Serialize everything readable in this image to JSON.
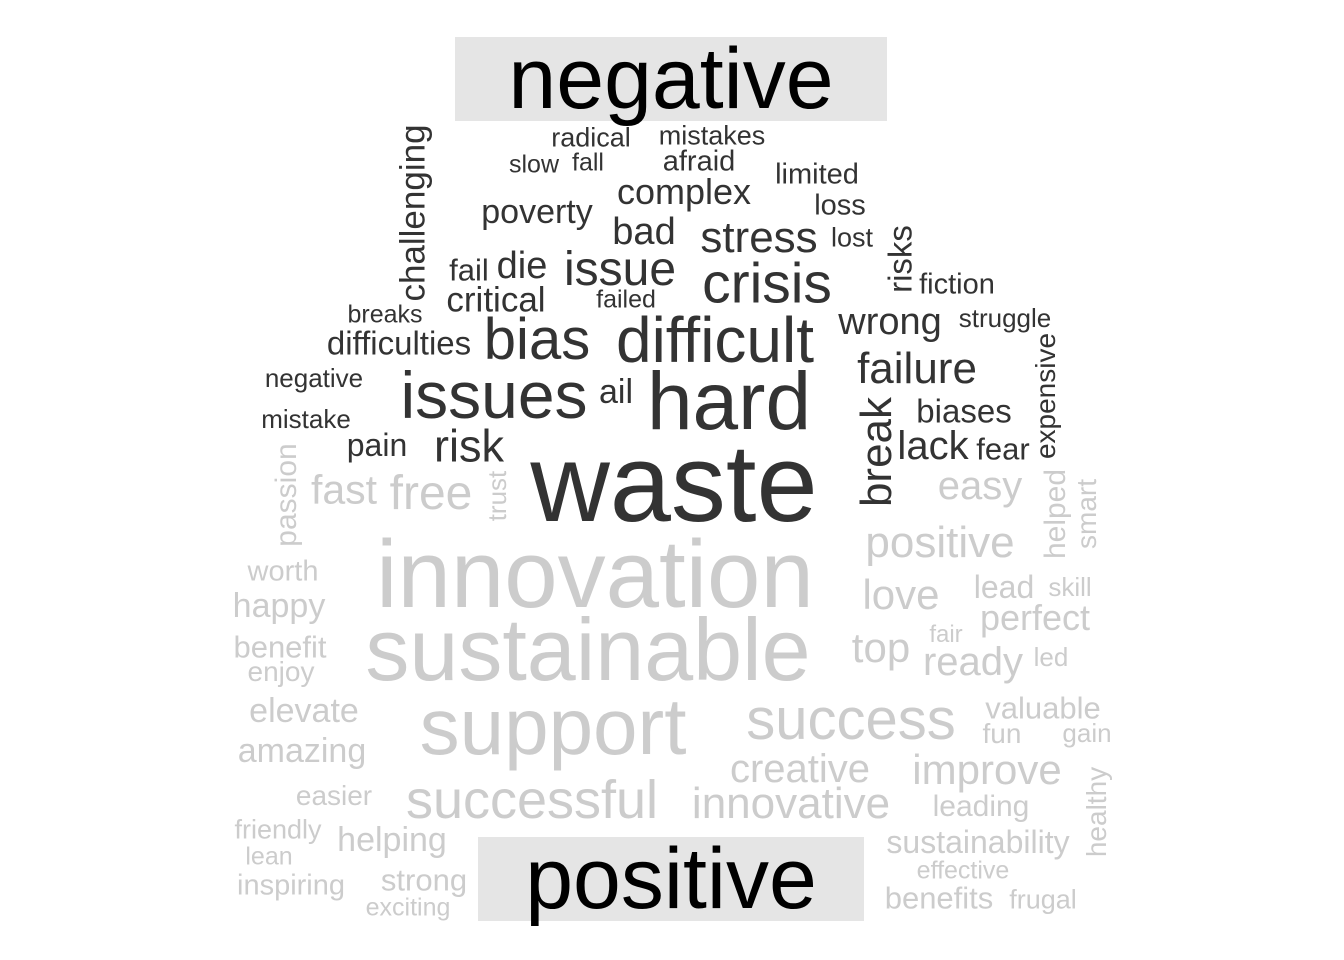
{
  "headers": {
    "negative": "negative",
    "positive": "positive"
  },
  "colors": {
    "negative_words": "#333333",
    "positive_words": "#cccccc",
    "header_background": "#e5e5e5",
    "header_text": "#000000"
  },
  "negative_words": [
    "radical",
    "mistakes",
    "slow",
    "fall",
    "afraid",
    "challenging",
    "limited",
    "complex",
    "loss",
    "poverty",
    "bad",
    "stress",
    "lost",
    "risks",
    "fail",
    "die",
    "issue",
    "crisis",
    "fiction",
    "critical",
    "failed",
    "breaks",
    "wrong",
    "struggle",
    "bias",
    "difficult",
    "difficulties",
    "negative",
    "failure",
    "expensive",
    "issues",
    "ail",
    "hard",
    "biases",
    "mistake",
    "break",
    "risk",
    "lack",
    "fear",
    "pain",
    "waste"
  ],
  "positive_words": [
    "passion",
    "fast",
    "free",
    "trust",
    "easy",
    "helped",
    "smart",
    "innovation",
    "positive",
    "worth",
    "happy",
    "love",
    "lead",
    "skill",
    "perfect",
    "benefit",
    "fair",
    "enjoy",
    "sustainable",
    "top",
    "ready",
    "led",
    "elevate",
    "valuable",
    "support",
    "success",
    "fun",
    "gain",
    "amazing",
    "creative",
    "improve",
    "healthy",
    "easier",
    "successful",
    "innovative",
    "leading",
    "friendly",
    "helping",
    "sustainability",
    "lean",
    "effective",
    "inspiring",
    "strong",
    "benefits",
    "frugal",
    "exciting"
  ]
}
